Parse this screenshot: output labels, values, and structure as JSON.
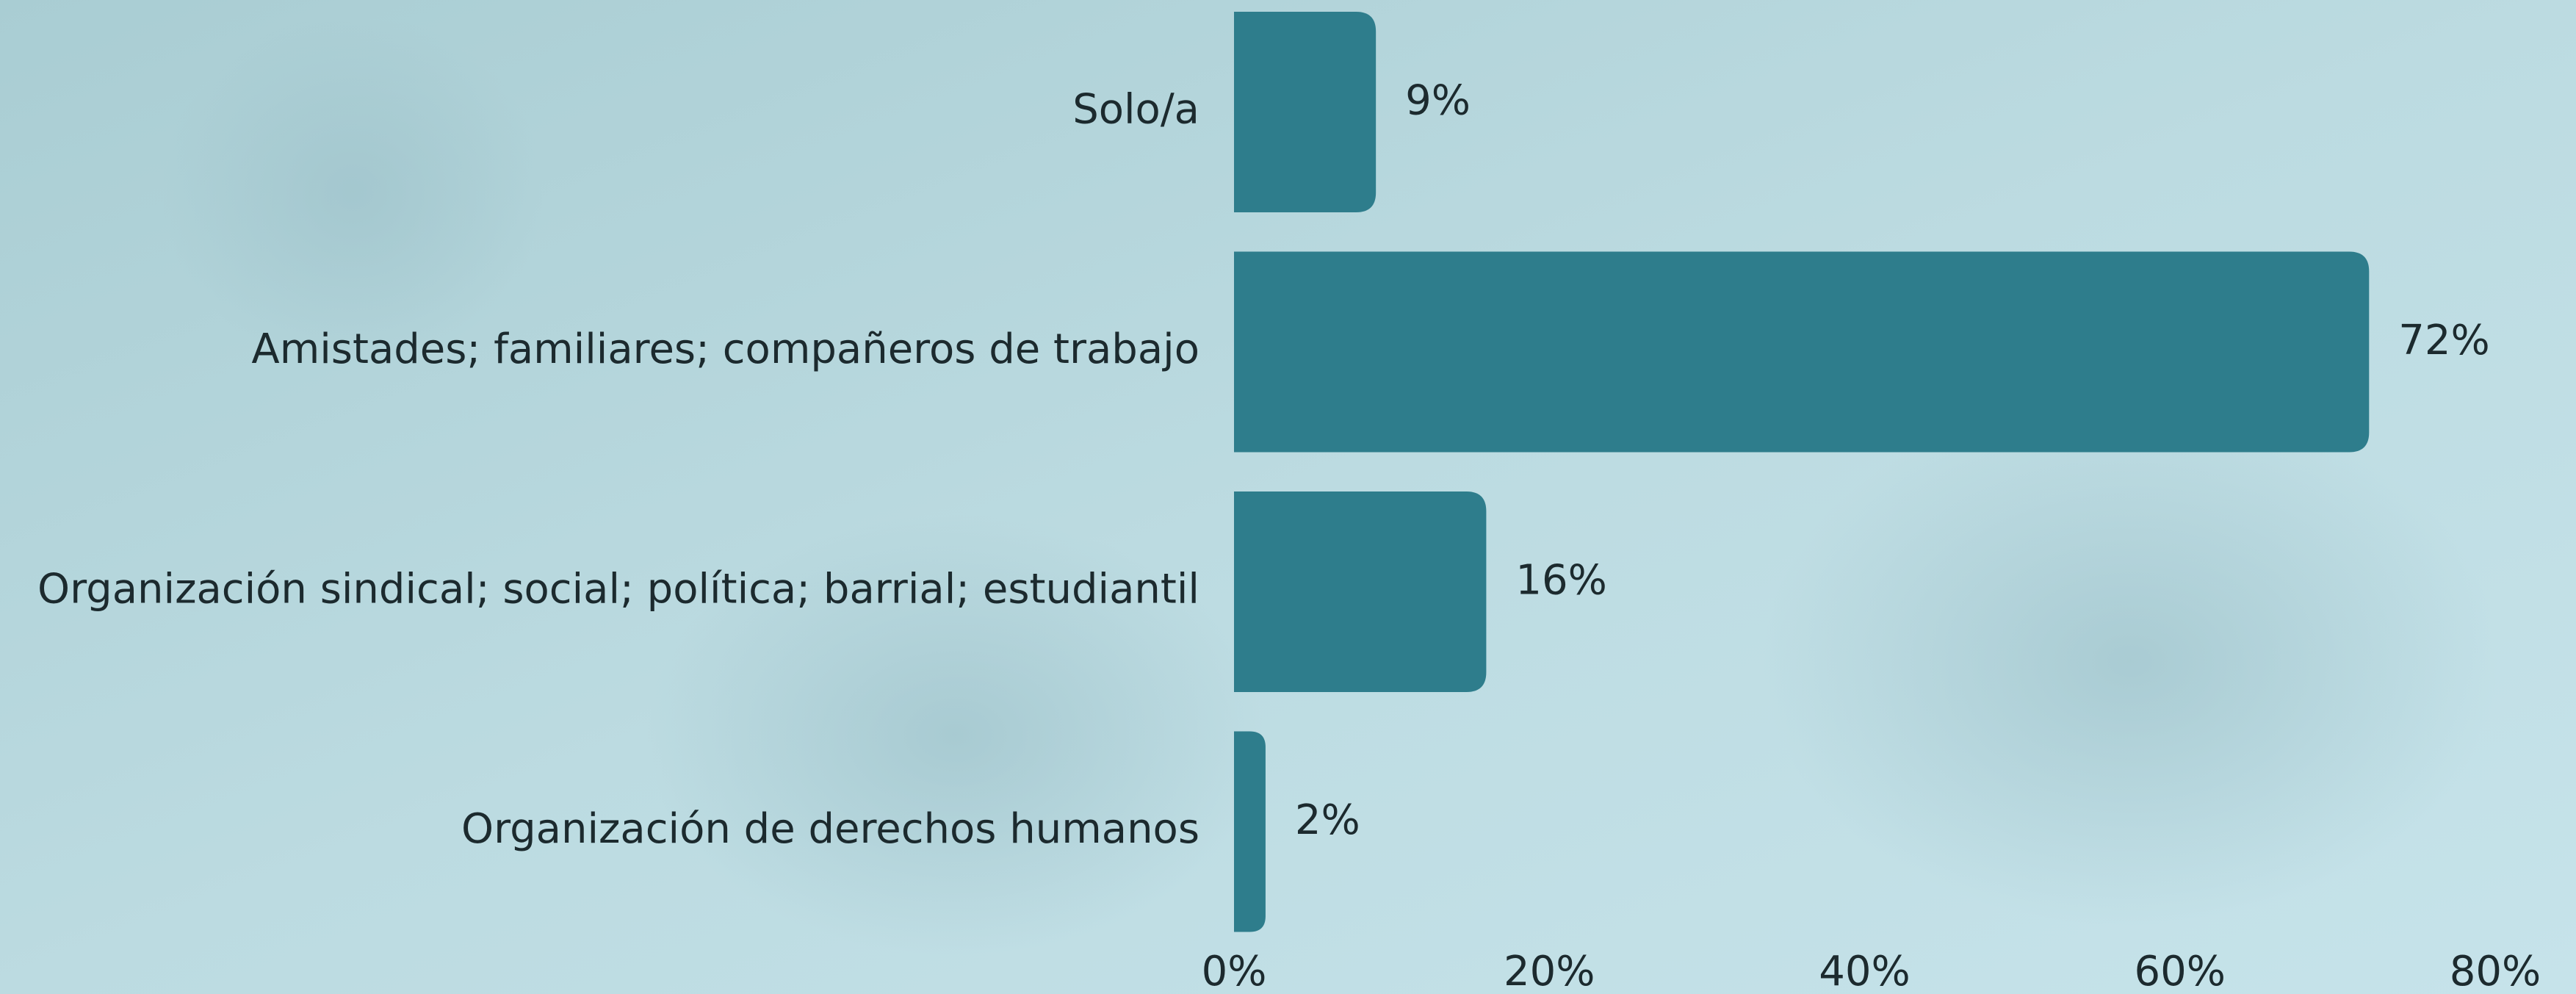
{
  "chart_data": {
    "type": "barh",
    "categories": [
      "Solo/a",
      "Amistades; familiares; compañeros de trabajo",
      "Organización sindical; social; política; barrial; estudiantil",
      "Organización de derechos humanos"
    ],
    "values": [
      9,
      72,
      16,
      2
    ],
    "value_labels": [
      "9%",
      "72%",
      "16%",
      "2%"
    ],
    "color": "#2e7d8c",
    "xlim": [
      0,
      80
    ],
    "xticks": [
      {
        "value": 0,
        "label": "0%"
      },
      {
        "value": 20,
        "label": "20%"
      },
      {
        "value": 40,
        "label": "40%"
      },
      {
        "value": 60,
        "label": "60%"
      },
      {
        "value": 80,
        "label": "80%"
      }
    ],
    "grid": false
  }
}
